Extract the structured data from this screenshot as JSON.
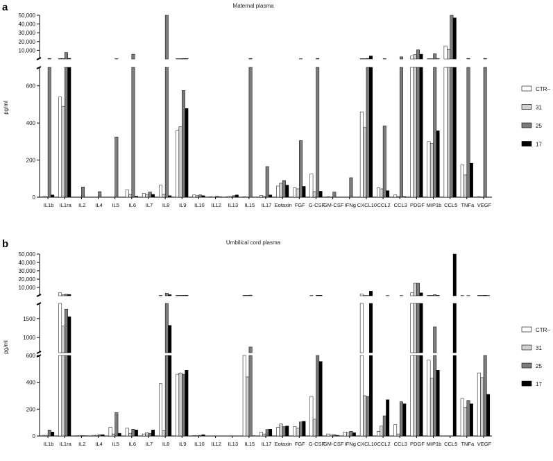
{
  "chart_data": [
    {
      "panel": "a",
      "type": "bar",
      "title": "Maternal plasma",
      "ylabel": "pg/ml",
      "ylim_lower": [
        0,
        700
      ],
      "ylim_upper": [
        0,
        50000
      ],
      "yticks_lower": [
        "0",
        "200",
        "400",
        "600"
      ],
      "yticks_upper": [
        "10,000",
        "20,000",
        "30,000",
        "40,000",
        "50,000"
      ],
      "categories": [
        "IL1b",
        "IL1ra",
        "IL2",
        "IL4",
        "IL5",
        "IL6",
        "IL7",
        "IL8",
        "IL9",
        "IL10",
        "IL12",
        "IL13",
        "IL15",
        "IL17",
        "Eotaxin",
        "FGF",
        "G-CSF",
        "GM-CSF",
        "IFNg",
        "CXCL10",
        "CCL2",
        "CCL3",
        "PDGF",
        "MIP1b",
        "CCL5",
        "TNFa",
        "VEGF"
      ],
      "series": [
        {
          "name": "CTR–",
          "color": "#ffffff",
          "values": [
            2,
            540,
            1,
            1,
            1,
            40,
            20,
            65,
            360,
            12,
            2,
            3,
            2,
            10,
            60,
            50,
            125,
            2,
            1,
            460,
            50,
            12,
            3500,
            300,
            15000,
            175,
            2
          ]
        },
        {
          "name": "31",
          "color": "#d0d0d0",
          "values": [
            3,
            490,
            1,
            1,
            1,
            15,
            15,
            15,
            380,
            8,
            1,
            2,
            1,
            5,
            75,
            45,
            30,
            1,
            1,
            375,
            45,
            5,
            5000,
            290,
            11000,
            120,
            1
          ]
        },
        {
          "name": "25",
          "color": "#7c7c7c",
          "values": [
            700,
            7500,
            55,
            30,
            325,
            5500,
            28,
            50000,
            575,
            12,
            5,
            8,
            700,
            165,
            90,
            305,
            700,
            28,
            105,
            700,
            385,
            2500,
            10500,
            6000,
            50000,
            700,
            700
          ]
        },
        {
          "name": "17",
          "color": "#000000",
          "values": [
            12,
            750,
            1,
            1,
            1,
            5,
            15,
            8,
            478,
            8,
            2,
            12,
            1,
            12,
            65,
            58,
            32,
            1,
            1,
            3500,
            35,
            3,
            5500,
            358,
            47000,
            183,
            1
          ]
        }
      ]
    },
    {
      "panel": "b",
      "type": "bar",
      "title": "Umbilical cord plasma",
      "ylabel": "pg/ml",
      "ylim_lower": [
        0,
        600
      ],
      "ylim_middle": [
        600,
        1900
      ],
      "ylim_upper": [
        0,
        50000
      ],
      "yticks_lower": [
        "0",
        "200",
        "400",
        "600"
      ],
      "yticks_middle": [
        "1000",
        "1500"
      ],
      "yticks_upper": [
        "10,000",
        "20,000",
        "30,000",
        "40,000",
        "50,000"
      ],
      "categories": [
        "IL1b",
        "IL1ra",
        "IL2",
        "IL4",
        "IL5",
        "IL6",
        "IL7",
        "IL8",
        "IL9",
        "IL10",
        "IL12",
        "IL13",
        "IL15",
        "IL17",
        "Eotaxin",
        "FGF",
        "G-CSF",
        "GM-CSF",
        "IFNg",
        "CXCL10",
        "CCL2",
        "CCL3",
        "PDGF",
        "MIP1b",
        "CCL5",
        "TNFa",
        "VEGF"
      ],
      "series": [
        {
          "name": "CTR–",
          "color": "#ffffff",
          "values": [
            5,
            3500,
            2,
            5,
            65,
            60,
            15,
            390,
            460,
            3,
            1,
            1,
            600,
            28,
            65,
            70,
            295,
            15,
            30,
            1900,
            35,
            85,
            3500,
            565,
            1,
            280,
            470
          ]
        },
        {
          "name": "31",
          "color": "#d0d0d0",
          "values": [
            5,
            1300,
            2,
            5,
            15,
            20,
            25,
            40,
            470,
            2,
            1,
            1,
            440,
            15,
            90,
            60,
            125,
            8,
            25,
            300,
            75,
            15,
            15000,
            430,
            1,
            215,
            435
          ]
        },
        {
          "name": "25",
          "color": "#7c7c7c",
          "values": [
            45,
            1750,
            3,
            10,
            175,
            50,
            20,
            3000,
            460,
            5,
            1,
            1,
            750,
            48,
            70,
            105,
            600,
            10,
            35,
            295,
            150,
            255,
            15000,
            1280,
            1,
            265,
            600
          ]
        },
        {
          "name": "17",
          "color": "#000000",
          "values": [
            30,
            1550,
            2,
            10,
            20,
            45,
            45,
            1320,
            490,
            10,
            1,
            1,
            2,
            50,
            75,
            110,
            555,
            5,
            25,
            5500,
            270,
            240,
            3500,
            490,
            50000,
            240,
            310
          ]
        }
      ]
    }
  ],
  "legend_order": [
    "CTR–",
    "31",
    "25",
    "17"
  ]
}
